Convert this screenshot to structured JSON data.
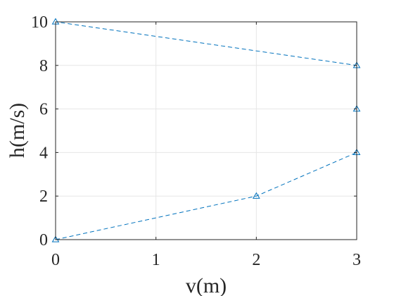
{
  "chart_data": {
    "type": "line",
    "title": "",
    "xlabel": "v(m)",
    "ylabel": "h(m/s)",
    "xlim": [
      0,
      3
    ],
    "ylim": [
      0,
      10
    ],
    "xticks": [
      0,
      1,
      2,
      3
    ],
    "yticks": [
      0,
      2,
      4,
      6,
      8,
      10
    ],
    "grid": true,
    "legend": "none",
    "series": [
      {
        "x": [
          0,
          2,
          3,
          3,
          3,
          0
        ],
        "y": [
          0,
          2,
          4,
          6,
          8,
          10
        ],
        "color": "#0072BD",
        "line_style": "dashed",
        "marker": "triangle-up"
      }
    ]
  }
}
